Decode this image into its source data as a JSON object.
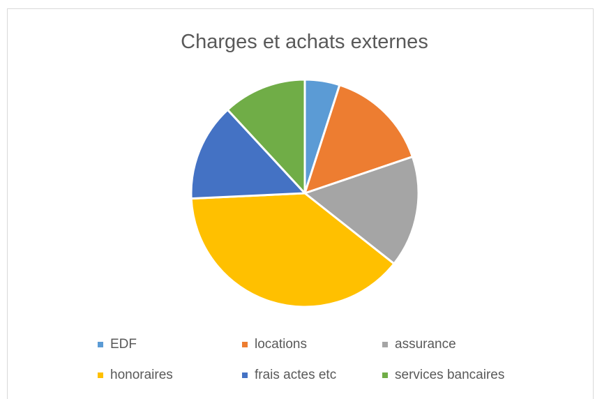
{
  "chart_data": {
    "type": "pie",
    "title": "Charges et achats externes",
    "legend_position": "bottom",
    "slices": [
      {
        "label": "EDF",
        "value": 5,
        "color": "#5b9bd5"
      },
      {
        "label": "locations",
        "value": 15,
        "color": "#ed7d31"
      },
      {
        "label": "assurance",
        "value": 16,
        "color": "#a5a5a5"
      },
      {
        "label": "honoraires",
        "value": 39,
        "color": "#ffc000"
      },
      {
        "label": "frais actes etc",
        "value": 14,
        "color": "#4472c4"
      },
      {
        "label": "services bancaires",
        "value": 12,
        "color": "#70ad47"
      }
    ]
  }
}
